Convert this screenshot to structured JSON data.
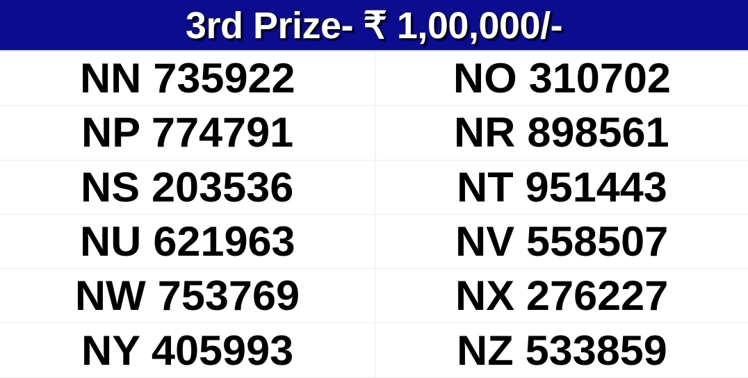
{
  "header": {
    "title": "3rd Prize- ₹ 1,00,000/-"
  },
  "tickets": [
    [
      "NN 735922",
      "NO 310702"
    ],
    [
      "NP 774791",
      "NR 898561"
    ],
    [
      "NS 203536",
      "NT 951443"
    ],
    [
      "NU 621963",
      "NV 558507"
    ],
    [
      "NW 753769",
      "NX 276227"
    ],
    [
      "NY 405993",
      "NZ 533859"
    ]
  ],
  "colors": {
    "header_bg": "#0c0c8e",
    "header_text": "#ffffff"
  }
}
